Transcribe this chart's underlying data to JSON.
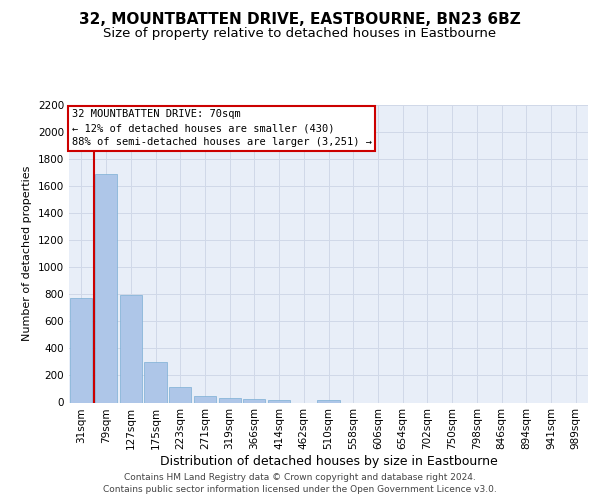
{
  "title": "32, MOUNTBATTEN DRIVE, EASTBOURNE, BN23 6BZ",
  "subtitle": "Size of property relative to detached houses in Eastbourne",
  "xlabel": "Distribution of detached houses by size in Eastbourne",
  "ylabel": "Number of detached properties",
  "categories": [
    "31sqm",
    "79sqm",
    "127sqm",
    "175sqm",
    "223sqm",
    "271sqm",
    "319sqm",
    "366sqm",
    "414sqm",
    "462sqm",
    "510sqm",
    "558sqm",
    "606sqm",
    "654sqm",
    "702sqm",
    "750sqm",
    "798sqm",
    "846sqm",
    "894sqm",
    "941sqm",
    "989sqm"
  ],
  "values": [
    770,
    1690,
    795,
    300,
    115,
    45,
    32,
    25,
    22,
    0,
    22,
    0,
    0,
    0,
    0,
    0,
    0,
    0,
    0,
    0,
    0
  ],
  "bar_color": "#aec6e8",
  "bar_edgecolor": "#7bafd4",
  "annotation_box_text": "32 MOUNTBATTEN DRIVE: 70sqm\n← 12% of detached houses are smaller (430)\n88% of semi-detached houses are larger (3,251) →",
  "annotation_box_color": "#cc0000",
  "vline_color": "#cc0000",
  "grid_color": "#d0d8e8",
  "background_color": "#e8eef8",
  "ylim": [
    0,
    2200
  ],
  "yticks": [
    0,
    200,
    400,
    600,
    800,
    1000,
    1200,
    1400,
    1600,
    1800,
    2000,
    2200
  ],
  "footer_line1": "Contains HM Land Registry data © Crown copyright and database right 2024.",
  "footer_line2": "Contains public sector information licensed under the Open Government Licence v3.0.",
  "title_fontsize": 11,
  "subtitle_fontsize": 9.5,
  "xlabel_fontsize": 9,
  "ylabel_fontsize": 8,
  "tick_fontsize": 7.5,
  "annot_fontsize": 7.5,
  "footer_fontsize": 6.5
}
